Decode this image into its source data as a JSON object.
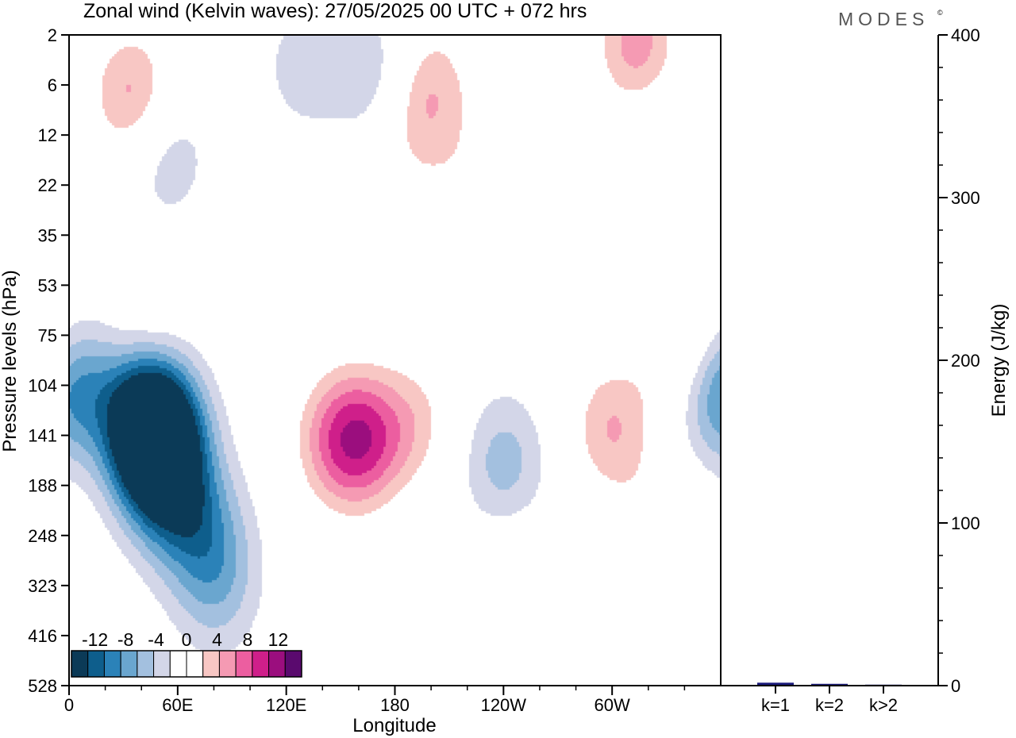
{
  "header": {
    "title": "Zonal wind (Kelvin waves):  27/05/2025  00 UTC  + 072 hrs",
    "logo": "MODES",
    "logo_mark": "©"
  },
  "chart_data": [
    {
      "type": "heatmap",
      "xlabel": "Longitude",
      "ylabel": "Pressure levels (hPa)",
      "x_ticks": [
        "0",
        "60E",
        "120E",
        "180",
        "120W",
        "60W"
      ],
      "x_tick_lons": [
        0,
        60,
        120,
        180,
        240,
        300
      ],
      "xlim": [
        0,
        360
      ],
      "y_ticks": [
        "2",
        "6",
        "12",
        "22",
        "35",
        "53",
        "75",
        "104",
        "141",
        "188",
        "248",
        "323",
        "416",
        "528"
      ],
      "y_scale": "log",
      "y_inverted": true,
      "colorbar": {
        "labels": [
          "-12",
          "-8",
          "-4",
          "0",
          "4",
          "8",
          "12"
        ],
        "label_values": [
          -12,
          -8,
          -4,
          0,
          4,
          8,
          12
        ],
        "levels": [
          -14,
          -12,
          -10,
          -8,
          -6,
          -4,
          -2,
          2,
          4,
          6,
          8,
          10,
          12,
          14
        ],
        "colors": [
          "#0b3a57",
          "#0e5e8c",
          "#2b82b8",
          "#6aa6cf",
          "#a3c0df",
          "#d3d6e8",
          "#ffffff",
          "#ffffff",
          "#f8c7c4",
          "#f59ab3",
          "#ec5ea0",
          "#cf1f8a",
          "#9b0e7e",
          "#5a0a6e"
        ]
      },
      "blobs": [
        {
          "lon": 47,
          "p": 135,
          "v": -14
        },
        {
          "lon": 48,
          "p": 150,
          "v": -11
        },
        {
          "lon": 58,
          "p": 200,
          "v": -7
        },
        {
          "lon": 76,
          "p": 250,
          "v": -5
        },
        {
          "lon": 82,
          "p": 330,
          "v": -4
        },
        {
          "lon": 35,
          "p": 105,
          "v": -4
        },
        {
          "lon": 2,
          "p": 104,
          "v": -4
        },
        {
          "lon": 53,
          "p": 15,
          "v": -4
        },
        {
          "lon": 130,
          "p": 4,
          "v": -3
        },
        {
          "lon": 170,
          "p": 5,
          "v": -4
        },
        {
          "lon": 240,
          "p": 165,
          "v": -5
        },
        {
          "lon": 358,
          "p": 110,
          "v": -5
        },
        {
          "lon": 320,
          "p": 6,
          "v": -3
        },
        {
          "lon": 162,
          "p": 145,
          "v": 9
        },
        {
          "lon": 145,
          "p": 145,
          "v": 5
        },
        {
          "lon": 192,
          "p": 130,
          "v": 4
        },
        {
          "lon": 300,
          "p": 135,
          "v": 6
        },
        {
          "lon": 340,
          "p": 82,
          "v": 5
        },
        {
          "lon": 315,
          "p": 3,
          "v": 9
        },
        {
          "lon": 35,
          "p": 7,
          "v": 7
        },
        {
          "lon": 200,
          "p": 6,
          "v": 5
        },
        {
          "lon": 190,
          "p": 12,
          "v": 3
        },
        {
          "lon": 250,
          "p": 14,
          "v": 3
        },
        {
          "lon": 225,
          "p": 28,
          "v": 3
        },
        {
          "lon": 40,
          "p": 80,
          "v": 3
        },
        {
          "lon": 325,
          "p": 250,
          "v": 3
        },
        {
          "lon": 245,
          "p": 340,
          "v": 3
        }
      ]
    },
    {
      "type": "bar",
      "categories": [
        "k=1",
        "k=2",
        "k>2"
      ],
      "values": [
        1.8,
        1.1,
        0.6
      ],
      "ylabel": "Energy (J/kg)",
      "ylim": [
        0,
        400
      ],
      "y_ticks": [
        "0",
        "100",
        "200",
        "300",
        "400"
      ],
      "y_tick_values": [
        0,
        100,
        200,
        300,
        400
      ],
      "bar_color": "#1a1a7a"
    }
  ]
}
